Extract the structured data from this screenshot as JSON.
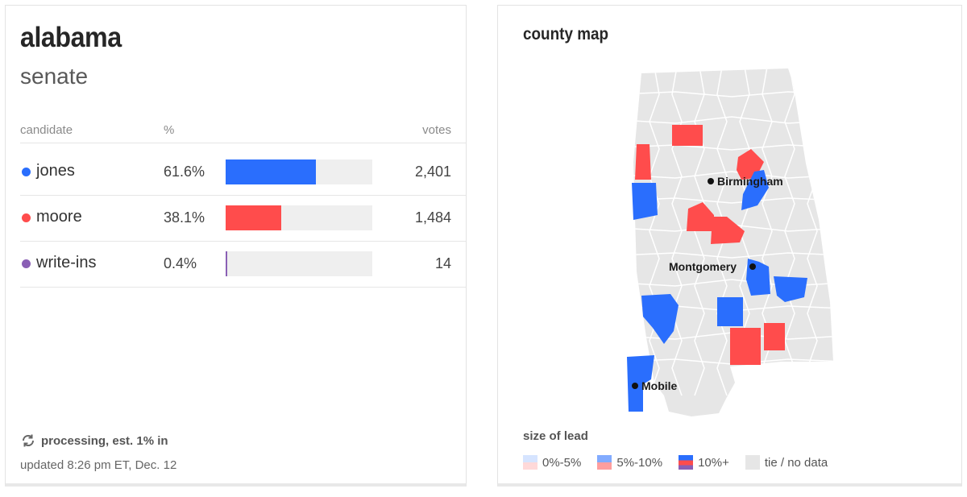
{
  "state": "alabama",
  "race": "senate",
  "table": {
    "headers": {
      "candidate": "candidate",
      "pct": "%",
      "votes": "votes"
    },
    "rows": [
      {
        "name": "jones",
        "pct": "61.6%",
        "share": 0.616,
        "votes": "2,401",
        "color": "#2a6efd"
      },
      {
        "name": "moore",
        "pct": "38.1%",
        "share": 0.381,
        "votes": "1,484",
        "color": "#ff4c4c"
      },
      {
        "name": "write-ins",
        "pct": "0.4%",
        "share": 0.004,
        "votes": "14",
        "color": "#8a5fb5"
      }
    ]
  },
  "status": "processing, est. 1% in",
  "updated": "updated 8:26 pm ET, Dec. 12",
  "map": {
    "title": "county map",
    "cities": [
      "Birmingham",
      "Montgomery",
      "Mobile"
    ],
    "legend_title": "size of lead",
    "legend": [
      "0%-5%",
      "5%-10%",
      "10%+",
      "tie / no data"
    ],
    "colors": {
      "dem": "#2a6efd",
      "rep": "#ff4c4c",
      "tie": "#e6e6e6",
      "border": "#ffffff"
    }
  }
}
